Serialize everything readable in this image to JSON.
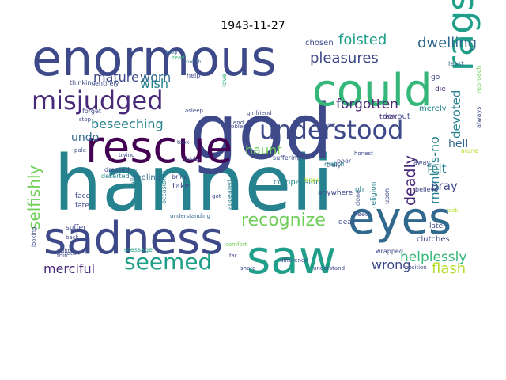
{
  "title": "1943-11-27",
  "palette": [
    "#440154",
    "#482878",
    "#3e4989",
    "#31688e",
    "#26828e",
    "#1f9e89",
    "#35b779",
    "#6ece58",
    "#b5de2b",
    "#fde725"
  ],
  "words": [
    {
      "text": "hanneli",
      "c": 4
    },
    {
      "text": "god",
      "c": 2
    },
    {
      "text": "enormous",
      "c": 2
    },
    {
      "text": "rescue",
      "c": 0
    },
    {
      "text": "sadness",
      "c": 2
    },
    {
      "text": "saw",
      "c": 5
    },
    {
      "text": "eyes",
      "c": 3
    },
    {
      "text": "could",
      "c": 6
    },
    {
      "text": "rags",
      "c": 5
    },
    {
      "text": "misjudged",
      "c": 1
    },
    {
      "text": "understood",
      "c": 2
    },
    {
      "text": "seemed",
      "c": 5
    },
    {
      "text": "recognize",
      "c": 7
    },
    {
      "text": "selfishly",
      "c": 7
    },
    {
      "text": "pleasures",
      "c": 2
    },
    {
      "text": "foisted",
      "c": 5
    },
    {
      "text": "dwelling",
      "c": 3
    },
    {
      "text": "forgotten",
      "c": 1
    },
    {
      "text": "mature",
      "c": 2
    },
    {
      "text": "worn",
      "c": 3
    },
    {
      "text": "wish",
      "c": 4
    },
    {
      "text": "beseeching",
      "c": 4
    },
    {
      "text": "devoted",
      "c": 4
    },
    {
      "text": "haunt",
      "c": 7
    },
    {
      "text": "deadly",
      "c": 1
    },
    {
      "text": "hell",
      "c": 3
    },
    {
      "text": "months-no",
      "c": 4
    },
    {
      "text": "felt",
      "c": 4
    },
    {
      "text": "pray",
      "c": 2
    },
    {
      "text": "undo",
      "c": 3
    },
    {
      "text": "merciful",
      "c": 1
    },
    {
      "text": "wrong",
      "c": 2
    },
    {
      "text": "helplessly",
      "c": 6
    },
    {
      "text": "flash",
      "c": 8
    },
    {
      "text": "devout",
      "c": 2
    },
    {
      "text": "treat",
      "c": 1
    },
    {
      "text": "merely",
      "c": 4
    },
    {
      "text": "chosen",
      "c": 2
    },
    {
      "text": "live",
      "c": 2
    },
    {
      "text": "die",
      "c": 1
    },
    {
      "text": "least",
      "c": 3
    },
    {
      "text": "go",
      "c": 2
    },
    {
      "text": "help",
      "c": 2
    },
    {
      "text": "enough",
      "c": 3
    },
    {
      "text": "read",
      "c": 6
    },
    {
      "text": "keep",
      "c": 3
    },
    {
      "text": "thinking",
      "c": 2
    },
    {
      "text": "entirely",
      "c": 2
    },
    {
      "text": "asleep",
      "c": 2
    },
    {
      "text": "forget",
      "c": 2
    },
    {
      "text": "stop",
      "c": 2
    },
    {
      "text": "pale",
      "c": 2
    },
    {
      "text": "feeling",
      "c": 3
    },
    {
      "text": "thinks",
      "c": 2
    },
    {
      "text": "suffering",
      "c": 2
    },
    {
      "text": "truly",
      "c": 2
    },
    {
      "text": "away",
      "c": 2
    },
    {
      "text": "dear",
      "c": 2
    },
    {
      "text": "religion",
      "c": 4
    },
    {
      "text": "upon",
      "c": 2
    },
    {
      "text": "face",
      "c": 2
    },
    {
      "text": "fate",
      "c": 2
    },
    {
      "text": "failing",
      "c": 4
    },
    {
      "text": "deserted",
      "c": 4
    },
    {
      "text": "dressed",
      "c": 2
    },
    {
      "text": "occasional",
      "c": 4
    },
    {
      "text": "take",
      "c": 2
    },
    {
      "text": "appeared",
      "c": 4
    },
    {
      "text": "compassion",
      "c": 4
    },
    {
      "text": "anywhere",
      "c": 2
    },
    {
      "text": "clutches",
      "c": 2
    },
    {
      "text": "late",
      "c": 2
    },
    {
      "text": "suffer",
      "c": 2
    },
    {
      "text": "understanding",
      "c": 3
    },
    {
      "text": "wrapped",
      "c": 2
    },
    {
      "text": "thin",
      "c": 2
    },
    {
      "text": "message",
      "c": 5
    },
    {
      "text": "share",
      "c": 2
    },
    {
      "text": "difference",
      "c": 2
    },
    {
      "text": "understand",
      "c": 2
    },
    {
      "text": "position",
      "c": 2
    },
    {
      "text": "problems",
      "c": 2
    },
    {
      "text": "girlfriend",
      "c": 2
    },
    {
      "text": "end",
      "c": 2
    },
    {
      "text": "back",
      "c": 2
    },
    {
      "text": "return",
      "c": 2
    },
    {
      "text": "trying",
      "c": 2
    },
    {
      "text": "bring",
      "c": 2
    },
    {
      "text": "oh",
      "c": 4
    },
    {
      "text": "done",
      "c": 2
    },
    {
      "text": "match",
      "c": 4
    },
    {
      "text": "need",
      "c": 2
    },
    {
      "text": "believe",
      "c": 2
    },
    {
      "text": "reproach",
      "c": 7
    },
    {
      "text": "always",
      "c": 2
    },
    {
      "text": "alone",
      "c": 8
    },
    {
      "text": "took",
      "c": 2
    },
    {
      "text": "got",
      "c": 2
    },
    {
      "text": "far",
      "c": 2
    },
    {
      "text": "comfort",
      "c": 7
    },
    {
      "text": "hope",
      "c": 8
    },
    {
      "text": "poor",
      "c": 2
    },
    {
      "text": "honest",
      "c": 2
    },
    {
      "text": "love",
      "c": 6
    },
    {
      "text": "looking",
      "c": 2
    },
    {
      "text": "right",
      "c": 2
    },
    {
      "text": "look",
      "c": 8
    }
  ]
}
